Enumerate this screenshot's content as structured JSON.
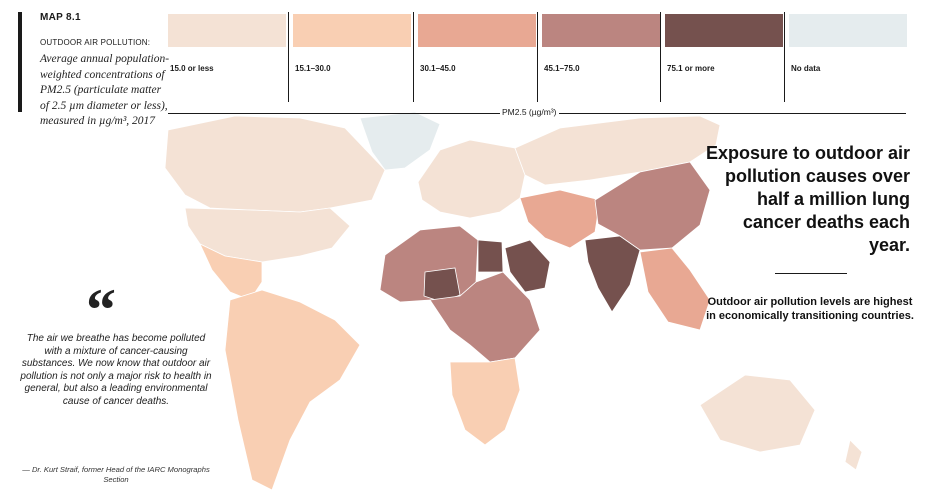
{
  "header": {
    "map_label": "MAP 8.1",
    "subtitle": "OUTDOOR AIR POLLUTION:",
    "description": "Average annual population-weighted concentrations of PM2.5 (particulate matter of 2.5 µm diameter or less), measured in µg/m³, 2017"
  },
  "legend": {
    "axis_label": "PM2.5 (µg/m³)",
    "items": [
      {
        "label": "15.0 or less",
        "color": "#f4e2d5"
      },
      {
        "label": "15.1–30.0",
        "color": "#f9cfb3"
      },
      {
        "label": "30.1–45.0",
        "color": "#e8a893"
      },
      {
        "label": "45.1–75.0",
        "color": "#bb8580"
      },
      {
        "label": "75.1 or more",
        "color": "#75514e"
      },
      {
        "label": "No data",
        "color": "#e5ecee"
      }
    ]
  },
  "callout": {
    "headline": "Exposure to outdoor air pollution causes over half a million lung cancer deaths each year.",
    "subhead": "Outdoor air pollution levels are highest in economically transitioning countries."
  },
  "quote": {
    "mark": "“",
    "text": "The air we breathe has become polluted with a mixture of cancer-causing substances. We now know that outdoor air pollution is not only a major risk to health in general, but also a leading environmental cause of cancer deaths.",
    "attribution": "— Dr. Kurt Straif, former Head of the IARC Monographs Section"
  },
  "regions": [
    {
      "name": "canada",
      "category": "15.0 or less"
    },
    {
      "name": "usa",
      "category": "15.0 or less"
    },
    {
      "name": "greenland",
      "category": "No data"
    },
    {
      "name": "mexico",
      "category": "15.1–30.0"
    },
    {
      "name": "south-america",
      "category": "15.1–30.0"
    },
    {
      "name": "europe",
      "category": "15.0 or less"
    },
    {
      "name": "russia",
      "category": "15.0 or less"
    },
    {
      "name": "north-africa",
      "category": "45.1–75.0"
    },
    {
      "name": "niger-nigeria",
      "category": "75.1 or more"
    },
    {
      "name": "egypt",
      "category": "75.1 or more"
    },
    {
      "name": "saudi-arabia",
      "category": "75.1 or more"
    },
    {
      "name": "central-africa",
      "category": "45.1–75.0"
    },
    {
      "name": "southern-africa",
      "category": "15.1–30.0"
    },
    {
      "name": "middle-east",
      "category": "30.1–45.0"
    },
    {
      "name": "india",
      "category": "75.1 or more"
    },
    {
      "name": "china",
      "category": "45.1–75.0"
    },
    {
      "name": "southeast-asia",
      "category": "30.1–45.0"
    },
    {
      "name": "australia",
      "category": "15.0 or less"
    }
  ]
}
